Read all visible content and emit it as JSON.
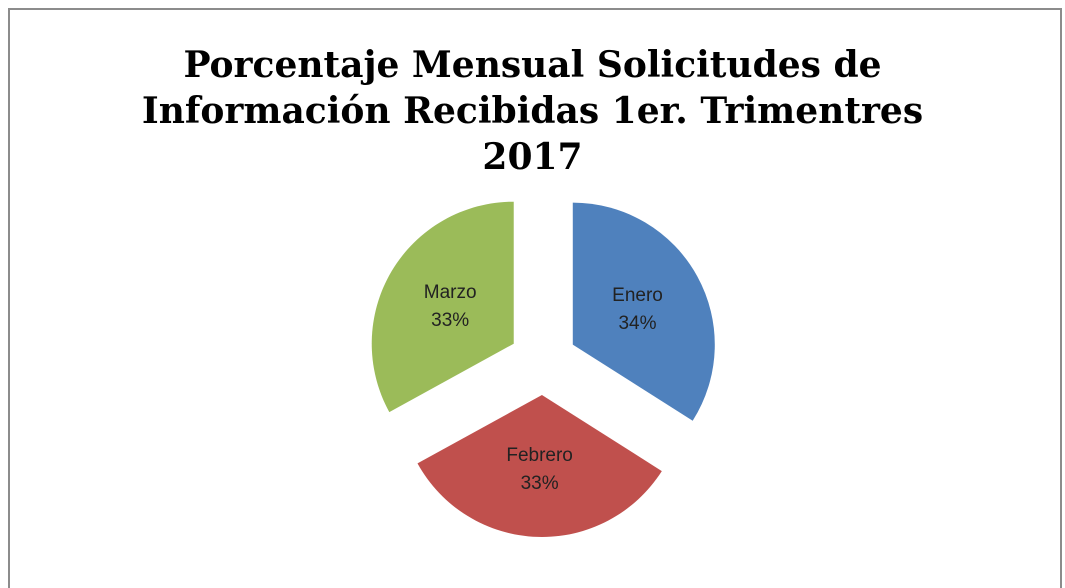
{
  "chart_data": {
    "type": "pie",
    "title": "Porcentaje Mensual Solicitudes de Información Recibidas 1er. Trimentres 2017",
    "categories": [
      "Enero",
      "Febrero",
      "Marzo"
    ],
    "values": [
      34,
      33,
      33
    ],
    "value_labels": [
      "34%",
      "33%",
      "33%"
    ],
    "colors": [
      "#4f81bd",
      "#c0504d",
      "#9bbb59"
    ],
    "exploded": true
  }
}
